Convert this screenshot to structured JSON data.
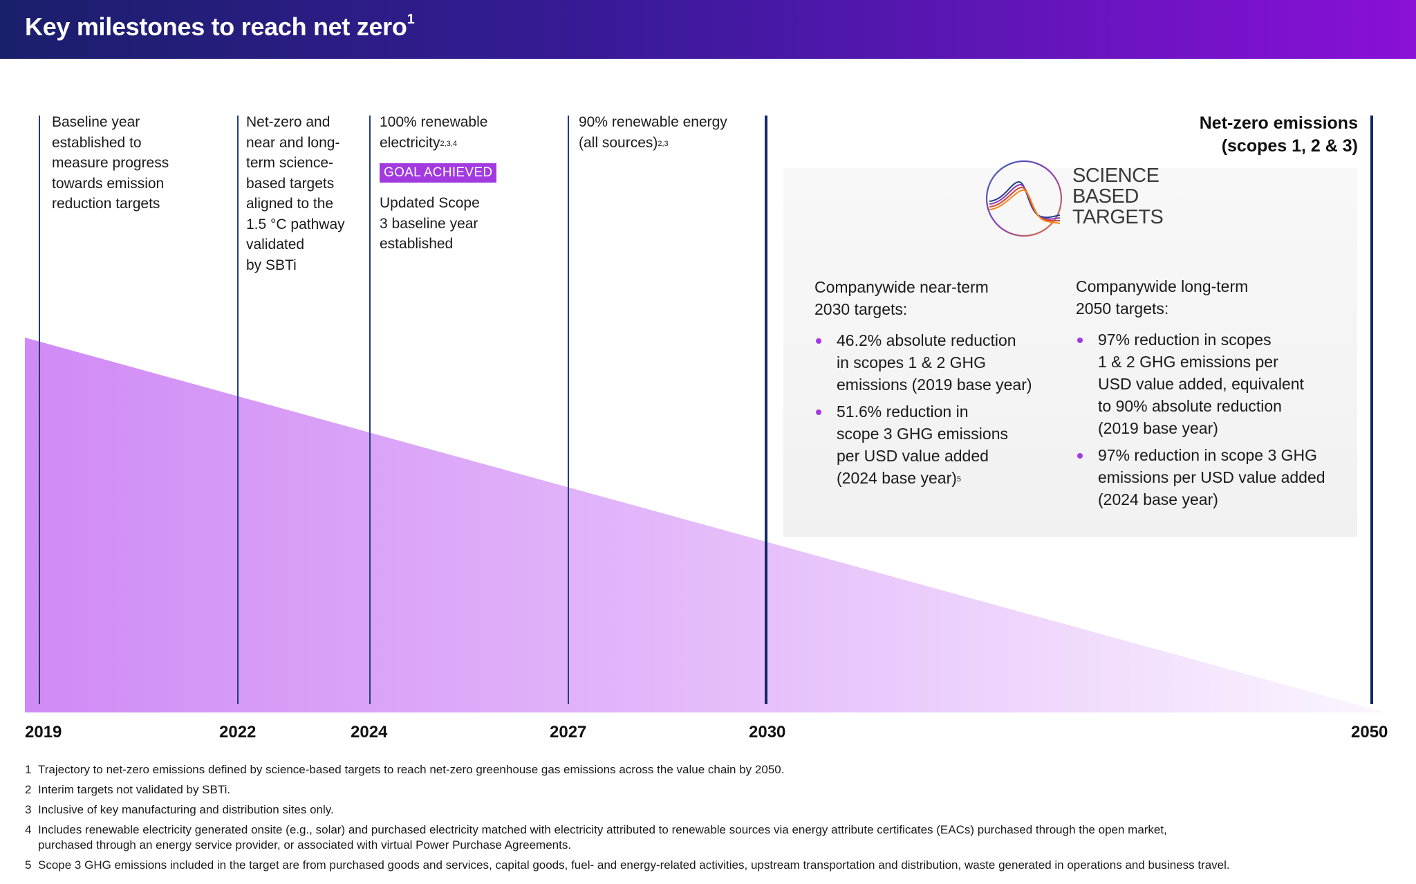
{
  "header": {
    "title": "Key milestones to reach net zero",
    "title_sup": "1"
  },
  "colors": {
    "accent": "#a23ae0",
    "line": "#1f3f7a",
    "header_start": "#1a1f6b",
    "header_end": "#8a10d8",
    "wedge": "#d08af5"
  },
  "milestones": [
    {
      "year": "2019",
      "text": [
        "Baseline year",
        "established to",
        "measure progress",
        "towards emission",
        "reduction targets"
      ]
    },
    {
      "year": "2022",
      "text": [
        "Net-zero and",
        "near and long-",
        "term science-",
        "based targets",
        "aligned to the",
        "1.5 °C pathway",
        "validated",
        "by SBTi"
      ]
    },
    {
      "year": "2024",
      "line1": "100% renewable",
      "line2": "electricity",
      "line2_sup": "2,3,4",
      "badge": "GOAL ACHIEVED",
      "extra": [
        "Updated Scope",
        "3 baseline year",
        "established"
      ]
    },
    {
      "year": "2027",
      "line1": "90% renewable energy",
      "line2": "(all sources)",
      "line2_sup": "2,3"
    },
    {
      "year": "2030"
    },
    {
      "year": "2050",
      "title": [
        "Net-zero emissions",
        "(scopes 1, 2 & 3)"
      ]
    }
  ],
  "sbt_logo": {
    "line1": "SCIENCE",
    "line2": "BASED",
    "line3": "TARGETS",
    "icon": "science-based-targets-icon"
  },
  "near_term": {
    "heading": [
      "Companywide near-term",
      "2030 targets:"
    ],
    "items": [
      {
        "lines": [
          "46.2% absolute reduction",
          "in scopes 1 & 2 GHG",
          "emissions (2019 base year)"
        ]
      },
      {
        "lines": [
          "51.6% reduction in",
          "scope 3 GHG emissions",
          "per USD value added",
          "(2024 base year)"
        ],
        "sup": "5"
      }
    ]
  },
  "long_term": {
    "heading": [
      "Companywide long-term",
      "2050 targets:"
    ],
    "items": [
      {
        "lines": [
          "97% reduction in scopes",
          "1 & 2 GHG emissions per",
          "USD value added, equivalent",
          "to 90% absolute reduction",
          "(2019 base year)"
        ]
      },
      {
        "lines": [
          "97% reduction in scope 3 GHG",
          "emissions per USD value added",
          "(2024 base year)"
        ]
      }
    ]
  },
  "footnotes": [
    {
      "n": "1",
      "text": "Trajectory to net-zero emissions defined by science-based targets to reach net-zero greenhouse gas emissions across the value chain by 2050."
    },
    {
      "n": "2",
      "text": "Interim targets not validated by SBTi."
    },
    {
      "n": "3",
      "text": "Inclusive of key manufacturing and distribution sites only."
    },
    {
      "n": "4",
      "text": "Includes renewable electricity generated onsite (e.g., solar) and purchased electricity matched with electricity attributed to renewable sources via energy attribute certificates (EACs) purchased through the open market,",
      "text2": "purchased through an energy service provider, or associated with virtual Power Purchase Agreements."
    },
    {
      "n": "5",
      "text": "Scope 3 GHG emissions included in the target are from purchased goods and services, capital goods, fuel- and energy-related activities, upstream transportation and distribution, waste generated in operations and business travel."
    }
  ]
}
